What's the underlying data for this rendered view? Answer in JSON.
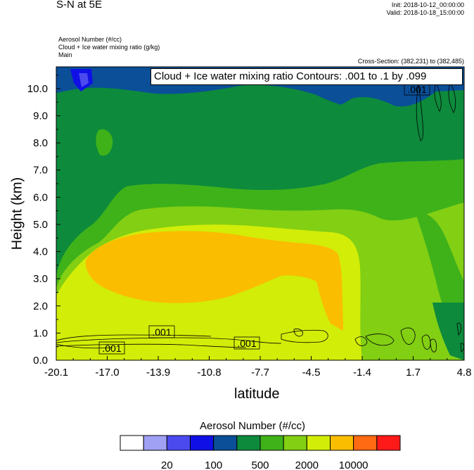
{
  "header": {
    "title": "S-N at 5E",
    "init": "Init: 2018-10-12_00:00:00",
    "valid": "Valid: 2018-10-18_15:00:00",
    "field_1": "Aerosol Number   (#/cc)",
    "field_2": "Cloud + Ice water mixing ratio   (g/kg)",
    "field_3": "Main",
    "cross_section": "Cross-Section: (382,231) to (382,485)"
  },
  "chart_data": {
    "type": "heatmap",
    "contour_title": "Cloud + Ice water mixing ratio Contours: .001 to .1 by .099",
    "contour_labels": [
      ".001",
      ".001",
      ".001",
      ".001"
    ],
    "xlabel": "latitude",
    "ylabel": "Height (km)",
    "xlim": [
      -20.1,
      4.8
    ],
    "ylim": [
      0.0,
      10.8
    ],
    "x_ticks": [
      "-20.1",
      "-17.0",
      "-13.9",
      "-10.8",
      "-7.7",
      "-4.5",
      "-1.4",
      "1.7",
      "4.8"
    ],
    "y_ticks": [
      "0.0",
      "1.0",
      "2.0",
      "3.0",
      "4.0",
      "5.0",
      "6.0",
      "7.0",
      "8.0",
      "9.0",
      "10.0"
    ],
    "colorbar": {
      "title": "Aerosol Number  (#/cc)",
      "colors": [
        "#ffffff",
        "#a0a0f5",
        "#4a4aef",
        "#1010e6",
        "#0a4f98",
        "#0d8a3c",
        "#3fb21a",
        "#82cf13",
        "#d2ed08",
        "#fbbd00",
        "#ff6a12",
        "#ff1a1a"
      ],
      "labels": [
        "20",
        "100",
        "500",
        "2000",
        "10000"
      ]
    }
  }
}
